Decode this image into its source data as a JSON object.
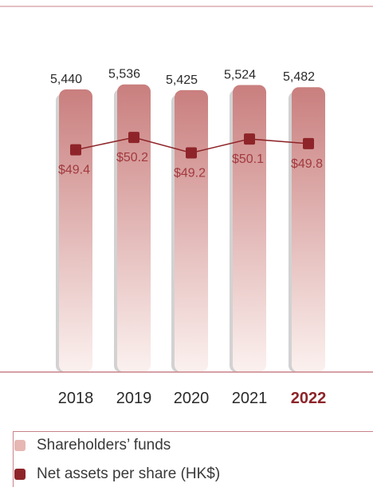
{
  "chart_data": {
    "type": "bar",
    "categories": [
      "2018",
      "2019",
      "2020",
      "2021",
      "2022"
    ],
    "highlight_category": "2022",
    "series": [
      {
        "name": "Shareholders’ funds",
        "type": "bar",
        "values": [
          5440,
          5536,
          5425,
          5524,
          5482
        ],
        "labels": [
          "5,440",
          "5,536",
          "5,425",
          "5,524",
          "5,482"
        ]
      },
      {
        "name": "Net assets per share (HK$)",
        "type": "line",
        "values": [
          49.4,
          50.2,
          49.2,
          50.1,
          49.8
        ],
        "labels": [
          "$49.4",
          "$50.2",
          "$49.2",
          "$50.1",
          "$49.8"
        ]
      }
    ],
    "bar_ylim": [
      0,
      5900
    ],
    "line_ylim": [
      35,
      56
    ],
    "title": "",
    "xlabel": "",
    "ylabel": ""
  },
  "legend": {
    "items": [
      {
        "label": "Shareholders’ funds",
        "swatch_color": "#e6b7b3"
      },
      {
        "label": "Net assets per share (HK$)",
        "swatch_color": "#8e2429"
      }
    ]
  },
  "colors": {
    "bar_top": "#c97f7e",
    "bar_bottom": "#fbf1ef",
    "bar_shadow": "#d2d2d2",
    "line": "#8e2429",
    "marker": "#8e2429",
    "net_label": "#a23a3f",
    "rule": "#c9828a",
    "text": "#2a2a2a",
    "highlight": "#8e2429"
  }
}
